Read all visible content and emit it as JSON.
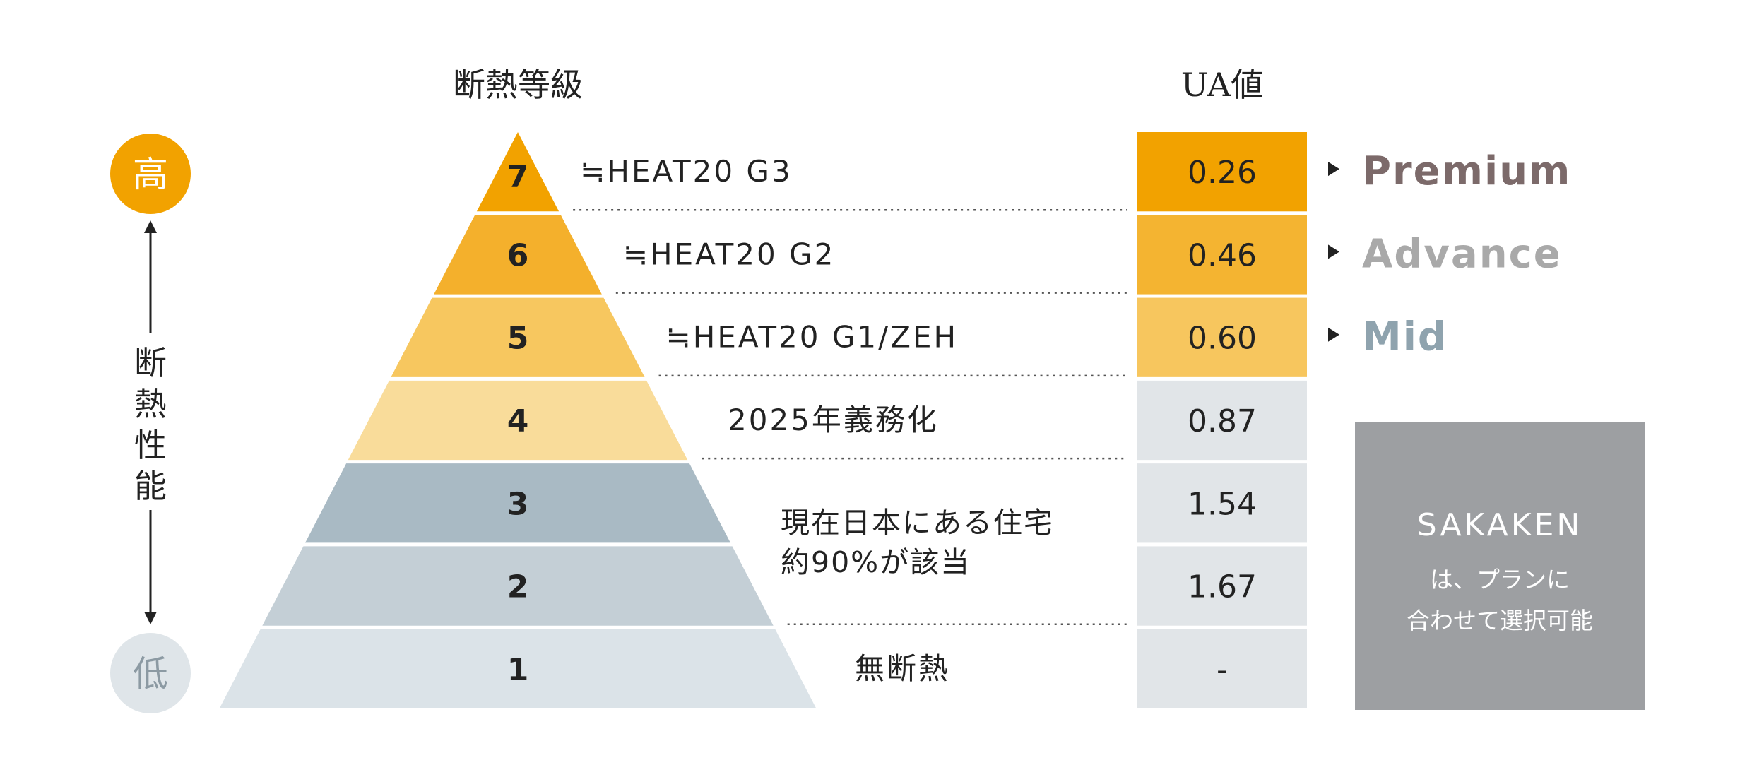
{
  "headers": {
    "grade": "断熱等級",
    "ua": "UA値"
  },
  "axis": {
    "high": "高",
    "low": "低",
    "label_chars": [
      "断",
      "熱",
      "性",
      "能"
    ],
    "high_color": "#f2a200",
    "low_color": "#dfe5e9"
  },
  "levels": [
    {
      "grade": "7",
      "note": "≒HEAT20 G3",
      "ua": "0.26",
      "tier": "Premium",
      "tier_color": "#7c6a6a",
      "layer_color": "#f2a200",
      "box_color": "#f2a200"
    },
    {
      "grade": "6",
      "note": "≒HEAT20 G2",
      "ua": "0.46",
      "tier": "Advance",
      "tier_color": "#a9a9a9",
      "layer_color": "#f4b02c",
      "box_color": "#f4b431"
    },
    {
      "grade": "5",
      "note": "≒HEAT20 G1/ZEH",
      "ua": "0.60",
      "tier": "Mid",
      "tier_color": "#8fa3ae",
      "layer_color": "#f7c75f",
      "box_color": "#f7c65e"
    },
    {
      "grade": "4",
      "note": "2025年義務化",
      "ua": "0.87",
      "layer_color": "#f9dc9a",
      "box_color": "#e1e5e8"
    },
    {
      "grade": "3",
      "ua": "1.54",
      "layer_color": "#a9bac4",
      "box_color": "#e1e5e8"
    },
    {
      "grade": "2",
      "ua": "1.67",
      "layer_color": "#c4cfd6",
      "box_color": "#e1e5e8"
    },
    {
      "grade": "1",
      "note": "無断熱",
      "ua": "-",
      "layer_color": "#dbe3e8",
      "box_color": "#e1e5e8"
    }
  ],
  "group_note": {
    "line1": "現在日本にある住宅",
    "line2": "約90%が該当"
  },
  "sakaken": {
    "title": "SAKAKEN",
    "line1": "は、プランに",
    "line2": "合わせて選択可能",
    "color": "#9d9fa2"
  }
}
